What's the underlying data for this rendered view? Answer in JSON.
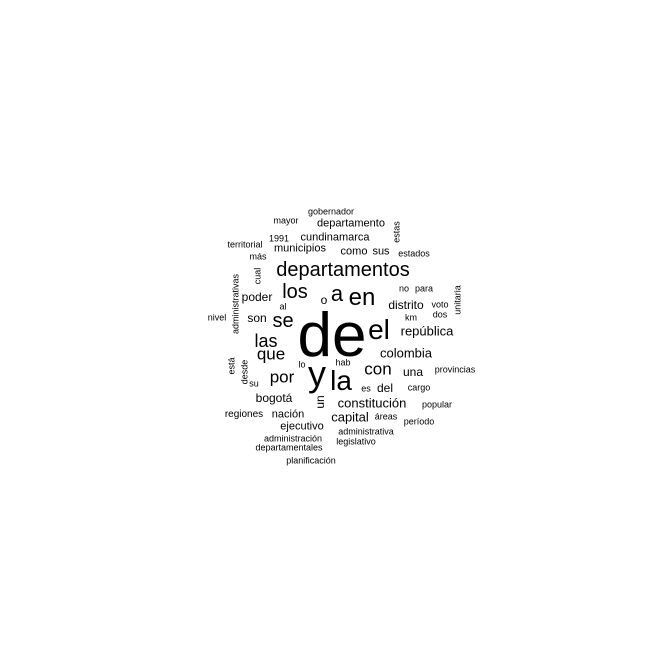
{
  "word_cloud": {
    "words": [
      {
        "text": "de",
        "vertical": false
      },
      {
        "text": "y",
        "vertical": false
      },
      {
        "text": "la",
        "vertical": false
      },
      {
        "text": "el",
        "vertical": false
      },
      {
        "text": "departamentos",
        "vertical": false
      },
      {
        "text": "en",
        "vertical": false
      },
      {
        "text": "a",
        "vertical": false
      },
      {
        "text": "los",
        "vertical": false
      },
      {
        "text": "se",
        "vertical": false
      },
      {
        "text": "las",
        "vertical": false
      },
      {
        "text": "que",
        "vertical": false
      },
      {
        "text": "por",
        "vertical": false
      },
      {
        "text": "con",
        "vertical": false
      },
      {
        "text": "colombia",
        "vertical": false
      },
      {
        "text": "república",
        "vertical": false
      },
      {
        "text": "constitución",
        "vertical": false
      },
      {
        "text": "capital",
        "vertical": false
      },
      {
        "text": "distrito",
        "vertical": false
      },
      {
        "text": "poder",
        "vertical": false
      },
      {
        "text": "son",
        "vertical": false
      },
      {
        "text": "bogotá",
        "vertical": false
      },
      {
        "text": "una",
        "vertical": false
      },
      {
        "text": "del",
        "vertical": false
      },
      {
        "text": "o",
        "vertical": false
      },
      {
        "text": "un",
        "vertical": true
      },
      {
        "text": "cundinamarca",
        "vertical": false
      },
      {
        "text": "municipios",
        "vertical": false
      },
      {
        "text": "como",
        "vertical": false
      },
      {
        "text": "sus",
        "vertical": false
      },
      {
        "text": "departamento",
        "vertical": false
      },
      {
        "text": "nación",
        "vertical": false
      },
      {
        "text": "regiones",
        "vertical": false
      },
      {
        "text": "ejecutivo",
        "vertical": false
      },
      {
        "text": "gobernador",
        "vertical": false
      },
      {
        "text": "mayor",
        "vertical": false
      },
      {
        "text": "1991",
        "vertical": false
      },
      {
        "text": "territorial",
        "vertical": false
      },
      {
        "text": "más",
        "vertical": false
      },
      {
        "text": "estados",
        "vertical": false
      },
      {
        "text": "estas",
        "vertical": true
      },
      {
        "text": "cual",
        "vertical": true
      },
      {
        "text": "administrativas",
        "vertical": true
      },
      {
        "text": "no",
        "vertical": false
      },
      {
        "text": "para",
        "vertical": false
      },
      {
        "text": "unitaria",
        "vertical": true
      },
      {
        "text": "al",
        "vertical": false
      },
      {
        "text": "voto",
        "vertical": false
      },
      {
        "text": "km",
        "vertical": false
      },
      {
        "text": "dos",
        "vertical": false
      },
      {
        "text": "nivel",
        "vertical": false
      },
      {
        "text": "lo",
        "vertical": false
      },
      {
        "text": "hab",
        "vertical": false
      },
      {
        "text": "está",
        "vertical": true
      },
      {
        "text": "desde",
        "vertical": true
      },
      {
        "text": "su",
        "vertical": false
      },
      {
        "text": "es",
        "vertical": false
      },
      {
        "text": "cargo",
        "vertical": false
      },
      {
        "text": "provincias",
        "vertical": false
      },
      {
        "text": "popular",
        "vertical": false
      },
      {
        "text": "áreas",
        "vertical": false
      },
      {
        "text": "período",
        "vertical": false
      },
      {
        "text": "administrativa",
        "vertical": false
      },
      {
        "text": "administración",
        "vertical": false
      },
      {
        "text": "legislativo",
        "vertical": false
      },
      {
        "text": "departamentales",
        "vertical": false
      },
      {
        "text": "planificación",
        "vertical": false
      }
    ]
  }
}
